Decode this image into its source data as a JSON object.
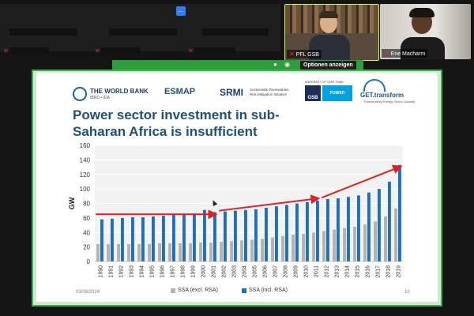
{
  "meeting": {
    "more_label": "...",
    "participants": [
      {
        "name": "PFL GSB"
      },
      {
        "name": "Ene Macharm"
      }
    ],
    "screen_share": {
      "options_label": "Optionen anzeigen"
    }
  },
  "slide": {
    "title_line1": "Power sector investment in sub-",
    "title_line2": "Saharan Africa is insufficient",
    "logos": {
      "world_bank": "THE WORLD BANK",
      "world_bank_sub": "IBRD • IDA",
      "esmap": "ESMAP",
      "srmi": "SRMI",
      "srmi_sub_line1": "Sustainable Renewables",
      "srmi_sub_line2": "Risk Mitigation Initiative",
      "gsb": "GSB",
      "uct": "UNIVERSITY OF CAPE TOWN",
      "power_futures": "POWER FUTURES",
      "get_transform": "GET.transform",
      "get_transform_sub": "Transforming Energy Sector Globally"
    },
    "date": "03/09/2024",
    "page_number": "10",
    "colors": {
      "title": "#1f4f7c",
      "series_excl": "#b3b3b3",
      "series_incl": "#1f6fc0",
      "arrow": "#e02020"
    }
  },
  "chart_data": {
    "type": "bar",
    "ylabel": "GW",
    "ylim": [
      0,
      160
    ],
    "yticks": [
      0,
      20,
      40,
      60,
      80,
      100,
      120,
      140,
      160
    ],
    "categories": [
      "1990",
      "1991",
      "1992",
      "1993",
      "1994",
      "1995",
      "1996",
      "1997",
      "1998",
      "1999",
      "2000",
      "2001",
      "2002",
      "2003",
      "2004",
      "2005",
      "2006",
      "2007",
      "2008",
      "2009",
      "2010",
      "2011",
      "2012",
      "2013",
      "2014",
      "2015",
      "2016",
      "2017",
      "2018",
      "2019"
    ],
    "series": [
      {
        "name": "SSA (excl. RSA)",
        "color": "#b3b3b3",
        "values": [
          24,
          24,
          24,
          24,
          24,
          24,
          25,
          25,
          25,
          25,
          26,
          26,
          27,
          28,
          29,
          30,
          31,
          33,
          35,
          37,
          38,
          40,
          42,
          44,
          46,
          48,
          51,
          55,
          62,
          73
        ]
      },
      {
        "name": "SSA (incl. RSA)",
        "color": "#1f6fc0",
        "values": [
          58,
          59,
          60,
          61,
          61,
          62,
          63,
          64,
          65,
          66,
          71,
          68,
          69,
          70,
          71,
          72,
          74,
          76,
          78,
          80,
          82,
          84,
          86,
          87,
          89,
          91,
          95,
          100,
          110,
          133
        ]
      }
    ],
    "arrows": [
      {
        "from": [
          "1990",
          65
        ],
        "to": [
          "2001",
          65
        ]
      },
      {
        "from": [
          "2002",
          70
        ],
        "to": [
          "2011",
          87
        ]
      },
      {
        "from": [
          "2012",
          88
        ],
        "to": [
          "2019",
          131
        ]
      }
    ],
    "grid": true,
    "legend": "bottom"
  }
}
